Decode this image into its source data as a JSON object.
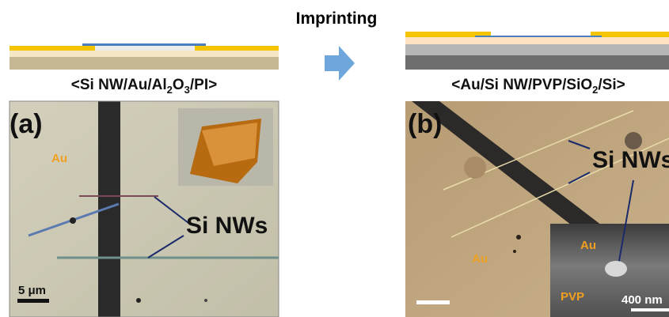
{
  "header": {
    "title": "Imprinting"
  },
  "panel_a": {
    "structure": [
      "<Si NW/Au/Al",
      "2",
      "O",
      "3",
      "/PI>"
    ],
    "label": "(a)",
    "au": "Au",
    "nws": "Si NWs",
    "scale": "5 μm"
  },
  "panel_b": {
    "structure": [
      "<Au/Si NW/PVP/SiO",
      "2",
      "/Si>"
    ],
    "label": "(b)",
    "nws": "Si NWs",
    "au": "Au",
    "inset_au": "Au",
    "inset_pvp": "PVP",
    "inset_scale": "400 nm"
  }
}
